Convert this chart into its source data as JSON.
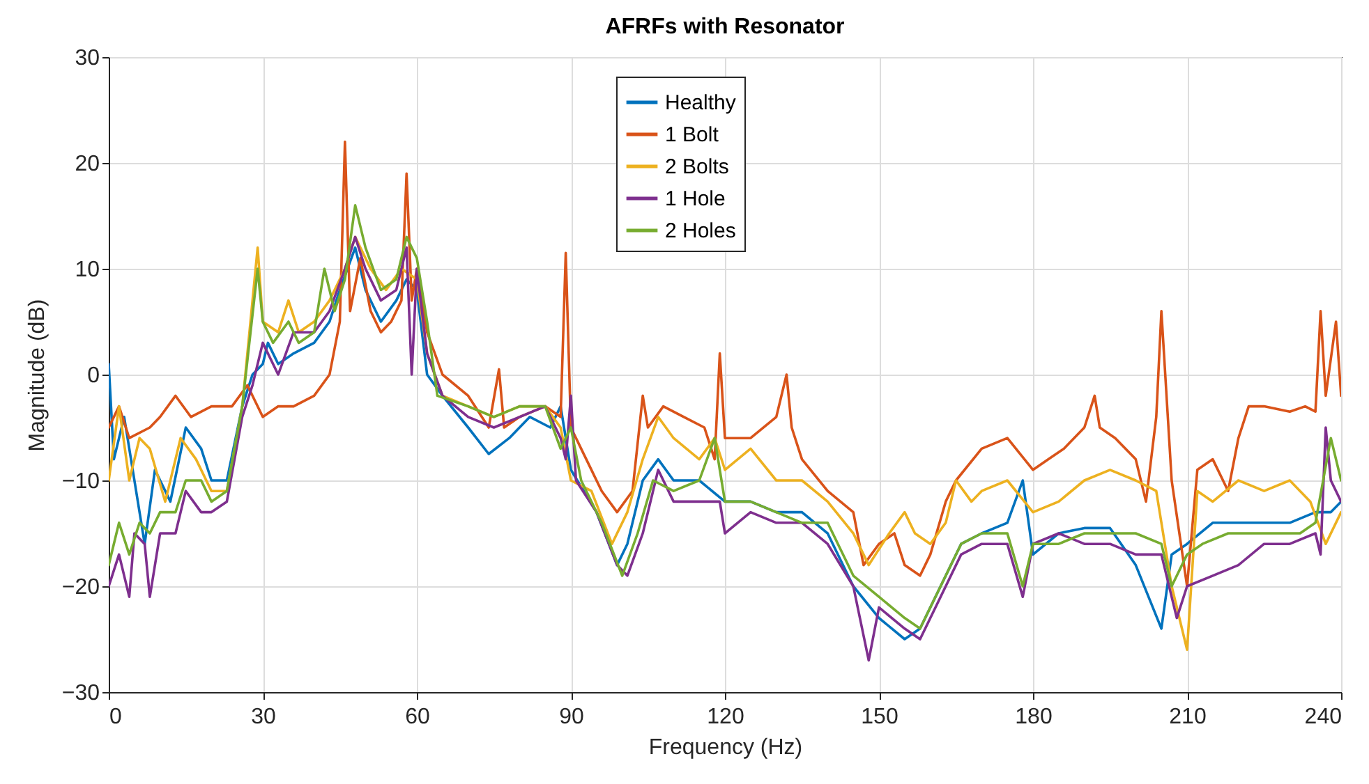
{
  "chart_data": {
    "type": "line",
    "title": "AFRFs with Resonator",
    "xlabel": "Frequency (Hz)",
    "ylabel": "Magnitude (dB)",
    "xlim": [
      0,
      240
    ],
    "xticks": [
      0,
      30,
      60,
      90,
      120,
      150,
      180,
      210,
      240
    ],
    "ylim": [
      -30,
      30
    ],
    "yticks": [
      -30,
      -20,
      -10,
      0,
      10,
      20,
      30
    ],
    "grid": true,
    "legend": "top",
    "line_style": "solid",
    "marker": "none",
    "series": [
      {
        "name": "Healthy",
        "color": "#0072bd",
        "x": [
          0,
          1,
          3,
          5,
          7,
          9,
          12,
          15,
          18,
          20,
          23,
          26,
          28,
          30,
          31,
          33,
          36,
          40,
          43,
          45,
          48,
          50,
          53,
          56,
          58,
          60,
          62,
          65,
          70,
          74,
          78,
          82,
          86,
          88,
          90,
          95,
          99,
          101,
          104,
          107,
          110,
          115,
          120,
          125,
          130,
          135,
          140,
          145,
          150,
          155,
          158,
          162,
          166,
          170,
          175,
          178,
          180,
          185,
          190,
          195,
          200,
          205,
          207,
          210,
          215,
          220,
          225,
          230,
          235,
          238,
          240
        ],
        "values": [
          1,
          -8,
          -4,
          -10,
          -16,
          -9,
          -12,
          -5,
          -7,
          -10,
          -10,
          -3,
          0,
          1,
          3,
          1,
          2,
          3,
          5,
          8,
          12,
          8,
          5,
          7,
          9,
          8,
          0,
          -2,
          -5,
          -7.5,
          -6,
          -4,
          -5,
          -3,
          -9,
          -13,
          -18,
          -16,
          -10,
          -8,
          -10,
          -10,
          -12,
          -12,
          -13,
          -13,
          -15,
          -20,
          -23,
          -25,
          -24,
          -20,
          -16,
          -15,
          -14,
          -10,
          -17,
          -15,
          -14.5,
          -14.5,
          -18,
          -24,
          -17,
          -16,
          -14,
          -14,
          -14,
          -14,
          -13,
          -13,
          -12
        ]
      },
      {
        "name": "1 Bolt",
        "color": "#d95319",
        "x": [
          0,
          2,
          4,
          8,
          10,
          13,
          16,
          20,
          24,
          27,
          30,
          33,
          36,
          40,
          43,
          45,
          46,
          47,
          49,
          51,
          53,
          55,
          57,
          58,
          59,
          60,
          62,
          65,
          70,
          74,
          76,
          77,
          80,
          85,
          88,
          89,
          90,
          93,
          96,
          99,
          102,
          104,
          105,
          108,
          112,
          116,
          118,
          119,
          120,
          125,
          130,
          132,
          133,
          135,
          140,
          145,
          147,
          150,
          153,
          155,
          158,
          160,
          163,
          165,
          170,
          175,
          180,
          183,
          186,
          190,
          192,
          193,
          196,
          200,
          202,
          204,
          205,
          207,
          210,
          212,
          215,
          218,
          220,
          222,
          225,
          230,
          233,
          235,
          236,
          237,
          239,
          240
        ],
        "values": [
          -5,
          -3,
          -6,
          -5,
          -4,
          -2,
          -4,
          -3,
          -3,
          -1,
          -4,
          -3,
          -3,
          -2,
          0,
          5,
          22,
          6,
          11,
          6,
          4,
          5,
          7,
          19,
          7,
          10,
          4,
          0,
          -2,
          -5,
          0.5,
          -5,
          -4,
          -3,
          -4,
          11.5,
          -5,
          -8,
          -11,
          -13,
          -11,
          -2,
          -5,
          -3,
          -4,
          -5,
          -8,
          2,
          -6,
          -6,
          -4,
          0,
          -5,
          -8,
          -11,
          -13,
          -18,
          -16,
          -15,
          -18,
          -19,
          -17,
          -12,
          -10,
          -7,
          -6,
          -9,
          -8,
          -7,
          -5,
          -2,
          -5,
          -6,
          -8,
          -12,
          -4,
          6,
          -10,
          -20,
          -9,
          -8,
          -11,
          -6,
          -3,
          -3,
          -3.5,
          -3,
          -3.5,
          6,
          -2,
          5,
          -2
        ]
      },
      {
        "name": "2 Bolts",
        "color": "#edb120",
        "x": [
          0,
          2,
          4,
          6,
          8,
          11,
          14,
          17,
          20,
          23,
          26,
          29,
          30,
          33,
          35,
          37,
          40,
          43,
          46,
          48,
          51,
          54,
          57,
          60,
          62,
          65,
          70,
          75,
          80,
          85,
          88,
          90,
          94,
          98,
          101,
          104,
          107,
          110,
          115,
          118,
          120,
          125,
          130,
          135,
          140,
          145,
          148,
          152,
          155,
          157,
          160,
          163,
          165,
          168,
          170,
          175,
          180,
          185,
          190,
          195,
          200,
          204,
          207,
          210,
          212,
          215,
          220,
          225,
          230,
          234,
          237,
          240
        ],
        "values": [
          -10,
          -3,
          -10,
          -6,
          -7,
          -12,
          -6,
          -8,
          -11,
          -11,
          -3,
          12,
          5,
          4,
          7,
          4,
          5,
          7,
          10,
          13,
          10,
          8,
          10,
          9,
          2,
          -2,
          -3,
          -4,
          -3,
          -3,
          -5,
          -10,
          -11,
          -16,
          -13,
          -8,
          -4,
          -6,
          -8,
          -6,
          -9,
          -7,
          -10,
          -10,
          -12,
          -15,
          -18,
          -15,
          -13,
          -15,
          -16,
          -14,
          -10,
          -12,
          -11,
          -10,
          -13,
          -12,
          -10,
          -9,
          -10,
          -11,
          -20,
          -26,
          -11,
          -12,
          -10,
          -11,
          -10,
          -12,
          -16,
          -13
        ]
      },
      {
        "name": "1 Hole",
        "color": "#7e2f8e",
        "x": [
          0,
          2,
          4,
          5,
          7,
          8,
          10,
          13,
          15,
          18,
          20,
          23,
          26,
          28,
          30,
          33,
          36,
          40,
          43,
          46,
          48,
          50,
          53,
          56,
          58,
          59,
          60,
          62,
          65,
          70,
          75,
          80,
          85,
          88,
          89,
          90,
          91,
          95,
          99,
          101,
          104,
          107,
          110,
          115,
          119,
          120,
          125,
          130,
          135,
          140,
          145,
          148,
          150,
          155,
          158,
          162,
          166,
          170,
          175,
          178,
          180,
          185,
          190,
          195,
          200,
          205,
          208,
          210,
          215,
          220,
          225,
          230,
          235,
          236,
          237,
          238,
          240
        ],
        "values": [
          -20,
          -17,
          -21,
          -15,
          -16,
          -21,
          -15,
          -15,
          -11,
          -13,
          -13,
          -12,
          -4,
          -1,
          3,
          0,
          4,
          4,
          6,
          10,
          13,
          10,
          7,
          8,
          12,
          0,
          10,
          2,
          -2,
          -4,
          -5,
          -4,
          -3,
          -6,
          -8,
          -2,
          -10,
          -13,
          -18,
          -19,
          -15,
          -9,
          -12,
          -12,
          -12,
          -15,
          -13,
          -14,
          -14,
          -16,
          -20,
          -27,
          -22,
          -24,
          -25,
          -21,
          -17,
          -16,
          -16,
          -21,
          -16,
          -15,
          -16,
          -16,
          -17,
          -17,
          -23,
          -20,
          -19,
          -18,
          -16,
          -16,
          -15,
          -17,
          -5,
          -10,
          -12
        ]
      },
      {
        "name": "2 Holes",
        "color": "#77ac30",
        "x": [
          0,
          2,
          4,
          6,
          8,
          10,
          13,
          15,
          18,
          20,
          23,
          26,
          29,
          30,
          32,
          35,
          37,
          40,
          42,
          44,
          46,
          48,
          50,
          53,
          56,
          58,
          60,
          62,
          64,
          70,
          75,
          80,
          85,
          88,
          90,
          92,
          96,
          100,
          103,
          106,
          110,
          115,
          118,
          120,
          125,
          130,
          135,
          140,
          145,
          150,
          155,
          158,
          162,
          166,
          170,
          175,
          178,
          180,
          185,
          190,
          195,
          200,
          205,
          207,
          210,
          213,
          218,
          222,
          227,
          232,
          235,
          238,
          240
        ],
        "values": [
          -18,
          -14,
          -17,
          -14,
          -15,
          -13,
          -13,
          -10,
          -10,
          -12,
          -11,
          -3,
          10,
          5,
          3,
          5,
          3,
          4,
          10,
          6,
          9,
          16,
          12,
          8,
          9,
          13,
          11,
          5,
          -2,
          -3,
          -4,
          -3,
          -3,
          -7,
          -5,
          -10,
          -14,
          -19,
          -15,
          -10,
          -11,
          -10,
          -6,
          -12,
          -12,
          -13,
          -14,
          -14,
          -19,
          -21,
          -23,
          -24,
          -20,
          -16,
          -15,
          -15,
          -20,
          -16,
          -16,
          -15,
          -15,
          -15,
          -16,
          -20,
          -17,
          -16,
          -15,
          -15,
          -15,
          -15,
          -14,
          -6,
          -10
        ]
      }
    ]
  }
}
